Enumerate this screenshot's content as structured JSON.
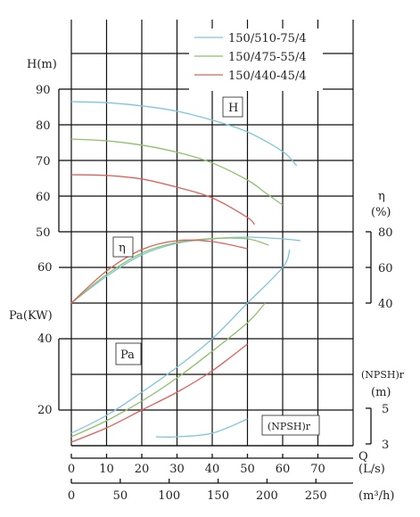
{
  "chart_data": {
    "type": "line",
    "legend": {
      "placement": "top-right",
      "entries": [
        {
          "name": "150/510-75/4",
          "color": "#7cc6de"
        },
        {
          "name": "150/475-55/4",
          "color": "#8ec06a"
        },
        {
          "name": "150/440-45/4",
          "color": "#e0605a"
        }
      ]
    },
    "head_axis": {
      "label": "H(m)",
      "ticks": [
        "50",
        "60",
        "70",
        "80",
        "90"
      ],
      "range": [
        50,
        90
      ]
    },
    "eff_axis": {
      "label_top": "η",
      "label_unit": "(%)",
      "ticks": [
        "40",
        "60",
        "80"
      ],
      "range": [
        40,
        80
      ]
    },
    "power_axis": {
      "label": "Pa(KW)",
      "ticks": [
        "20",
        "40",
        "60"
      ],
      "range": [
        10,
        60
      ]
    },
    "npsh_axis": {
      "label_top": "(NPSH)r",
      "label_unit": "(m)",
      "ticks": [
        "3",
        "5"
      ],
      "range": [
        3,
        5
      ]
    },
    "flow_ls_axis": {
      "label_symbol": "Q",
      "label_unit": "(L/s)",
      "ticks": [
        "0",
        "10",
        "20",
        "30",
        "40",
        "50",
        "60",
        "70"
      ],
      "range": [
        0,
        80
      ]
    },
    "flow_m3h_axis": {
      "label_unit": "(m³/h)",
      "ticks": [
        "0",
        "50",
        "100",
        "150",
        "200",
        "250"
      ],
      "range": [
        0,
        288
      ]
    },
    "curve_labels": {
      "head": "H",
      "efficiency": "η",
      "power": "Pa",
      "npsh": "(NPSH)r"
    },
    "series": [
      {
        "name": "150/510-75/4",
        "color": "#7cc6de",
        "head": {
          "x": [
            0,
            10,
            20,
            30,
            40,
            50,
            60,
            64
          ],
          "y": [
            86.5,
            86.2,
            85.3,
            83.8,
            81.3,
            78,
            72.5,
            68.5
          ]
        },
        "efficiency": {
          "x": [
            0,
            10,
            20,
            30,
            40,
            50,
            60,
            65
          ],
          "y": [
            40,
            55,
            67,
            73.5,
            76,
            77,
            76,
            75
          ]
        },
        "power": {
          "x": [
            0,
            10,
            20,
            30,
            40,
            50,
            60,
            62
          ],
          "y": [
            13.5,
            18.5,
            25,
            32,
            40,
            50,
            60,
            65
          ]
        },
        "npsh": {
          "x": [
            24,
            30,
            40,
            50
          ],
          "y": [
            3.4,
            3.4,
            3.6,
            4.4
          ]
        }
      },
      {
        "name": "150/475-55/4",
        "color": "#8ec06a",
        "head": {
          "x": [
            0,
            10,
            20,
            30,
            40,
            50,
            55,
            60
          ],
          "y": [
            76,
            75.5,
            74.3,
            72.3,
            69.3,
            64.5,
            61,
            57.5
          ]
        },
        "efficiency": {
          "x": [
            0,
            10,
            20,
            30,
            40,
            50,
            56
          ],
          "y": [
            40,
            56,
            68,
            74,
            76.2,
            76,
            72.5
          ]
        },
        "power": {
          "x": [
            0,
            10,
            20,
            30,
            40,
            50,
            55
          ],
          "y": [
            12.5,
            17,
            22.5,
            29,
            36.5,
            44.5,
            50
          ]
        }
      },
      {
        "name": "150/440-45/4",
        "color": "#e0605a",
        "head": {
          "x": [
            0,
            10,
            20,
            30,
            40,
            50,
            52
          ],
          "y": [
            66,
            65.8,
            64.8,
            62.5,
            59.5,
            54,
            52
          ]
        },
        "efficiency": {
          "x": [
            0,
            10,
            20,
            30,
            40,
            50
          ],
          "y": [
            40,
            58,
            70,
            75,
            74.5,
            70.5
          ]
        },
        "power": {
          "x": [
            0,
            10,
            20,
            30,
            40,
            50
          ],
          "y": [
            11,
            15,
            20,
            25,
            31,
            38.5
          ]
        }
      }
    ]
  }
}
